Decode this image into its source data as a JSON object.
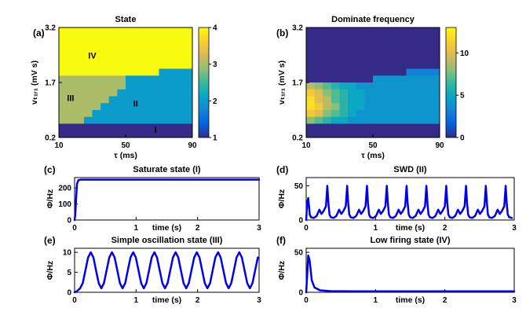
{
  "figure": {
    "background": "#ffffff"
  },
  "colors": {
    "line": "#0000ee",
    "annotation": "#ff0000",
    "axis": "#000000",
    "parula_stops": [
      "#352a87",
      "#0363e1",
      "#1485d4",
      "#06a7c6",
      "#38b99e",
      "#92bf73",
      "#d9ba56",
      "#fcce2e",
      "#f9fb0e"
    ]
  },
  "chart_data": [
    {
      "id": "a",
      "type": "heatmap",
      "letter": "(a)",
      "title": "State",
      "xlabel": "τ (ms)",
      "ylabel": "vₜ₁ᵣ₁ (mV s)",
      "x_range": [
        10,
        90
      ],
      "y_range": [
        0.2,
        3.2
      ],
      "xticks": [
        10,
        50,
        90
      ],
      "yticks": [
        0.2,
        1.7,
        3.2
      ],
      "zlim": [
        1,
        4
      ],
      "colorbar_ticks": [
        1,
        2,
        3,
        4
      ],
      "annotations": [
        {
          "text": "IV",
          "x": 30,
          "y": 2.35
        },
        {
          "text": "III",
          "x": 17,
          "y": 1.2
        },
        {
          "text": "II",
          "x": 56,
          "y": 1.05
        },
        {
          "text": "I",
          "x": 68,
          "y": 0.33
        }
      ],
      "matrix": [
        [
          4,
          4,
          4,
          4,
          4,
          4,
          4,
          4,
          4,
          4,
          4,
          4,
          4,
          4,
          4,
          4
        ],
        [
          4,
          4,
          4,
          4,
          4,
          4,
          4,
          4,
          4,
          4,
          4,
          4,
          4,
          4,
          4,
          4
        ],
        [
          4,
          4,
          4,
          4,
          4,
          4,
          4,
          4,
          4,
          4,
          4,
          4,
          4,
          4,
          4,
          4
        ],
        [
          4,
          4,
          4,
          4,
          4,
          4,
          4,
          4,
          4,
          4,
          4,
          4,
          4,
          4,
          4,
          4
        ],
        [
          4,
          4,
          4,
          4,
          4,
          4,
          4,
          4,
          4,
          4,
          4,
          4,
          4,
          4,
          4,
          4
        ],
        [
          4,
          4,
          4,
          4,
          4,
          4,
          4,
          4,
          4,
          4,
          4,
          4,
          4,
          4,
          4,
          4
        ],
        [
          4,
          4,
          4,
          4,
          4,
          4,
          4,
          4,
          4,
          4,
          4,
          4,
          2,
          2,
          2,
          2
        ],
        [
          3,
          3,
          3,
          3,
          3,
          3,
          3,
          3,
          2,
          2,
          2,
          2,
          2,
          2,
          2,
          2
        ],
        [
          3,
          3,
          3,
          3,
          3,
          3,
          3,
          3,
          2,
          2,
          2,
          2,
          2,
          2,
          2,
          2
        ],
        [
          3,
          3,
          3,
          3,
          3,
          3,
          3,
          2,
          2,
          2,
          2,
          2,
          2,
          2,
          2,
          2
        ],
        [
          3,
          3,
          3,
          3,
          3,
          3,
          2,
          2,
          2,
          2,
          2,
          2,
          2,
          2,
          2,
          2
        ],
        [
          3,
          3,
          3,
          3,
          3,
          2,
          2,
          2,
          2,
          2,
          2,
          2,
          2,
          2,
          2,
          2
        ],
        [
          3,
          3,
          3,
          3,
          2,
          2,
          2,
          2,
          2,
          2,
          2,
          2,
          2,
          2,
          2,
          2
        ],
        [
          3,
          3,
          3,
          2,
          2,
          2,
          2,
          2,
          2,
          2,
          2,
          2,
          2,
          2,
          2,
          2
        ],
        [
          1,
          1,
          1,
          1,
          1,
          1,
          1,
          1,
          1,
          1,
          1,
          1,
          1,
          1,
          1,
          1
        ],
        [
          1,
          1,
          1,
          1,
          1,
          1,
          1,
          1,
          1,
          1,
          1,
          1,
          1,
          1,
          1,
          1
        ]
      ]
    },
    {
      "id": "b",
      "type": "heatmap",
      "letter": "(b)",
      "title": "Dominate frequency",
      "xlabel": "τ (ms)",
      "ylabel": "vₜ₁ᵣ₁ (mV s)",
      "x_range": [
        10,
        90
      ],
      "y_range": [
        0.2,
        3.2
      ],
      "xticks": [
        10,
        50,
        90
      ],
      "yticks": [
        0.2,
        1.7,
        3.2
      ],
      "zlim": [
        0,
        13
      ],
      "colorbar_ticks": [
        0,
        5,
        10
      ],
      "annotations": [],
      "matrix": [
        [
          0,
          0,
          0,
          0,
          0,
          0,
          0,
          0,
          0,
          0,
          0,
          0,
          0,
          0,
          0,
          0
        ],
        [
          0,
          0,
          0,
          0,
          0,
          0,
          0,
          0,
          0,
          0,
          0,
          0,
          0,
          0,
          0,
          0
        ],
        [
          0,
          0,
          0,
          0,
          0,
          0,
          0,
          0,
          0,
          0,
          0,
          0,
          0,
          0,
          0,
          0
        ],
        [
          0,
          0,
          0,
          0,
          0,
          0,
          0,
          0,
          0,
          0,
          0,
          0,
          0,
          0,
          0,
          0
        ],
        [
          0,
          0,
          0,
          0,
          0,
          0,
          0,
          0,
          0,
          0,
          0,
          0,
          0,
          0,
          0,
          0
        ],
        [
          0,
          0,
          0,
          0,
          0,
          0,
          0,
          0,
          0,
          0,
          0,
          0,
          0,
          0,
          0,
          0
        ],
        [
          0,
          0,
          0,
          0,
          0,
          0,
          0,
          0,
          0,
          0,
          0,
          0,
          3,
          3,
          3,
          3
        ],
        [
          0,
          0,
          0,
          0,
          0,
          0,
          0,
          0,
          4,
          4,
          4,
          4,
          4,
          4,
          4,
          4
        ],
        [
          9,
          8,
          7,
          6,
          5,
          5,
          4,
          4,
          4,
          4,
          4,
          4,
          4,
          4,
          4,
          4
        ],
        [
          11,
          10,
          8,
          7,
          6,
          5,
          5,
          4,
          4,
          4,
          4,
          4,
          4,
          4,
          4,
          4
        ],
        [
          12,
          10,
          9,
          7,
          6,
          5,
          5,
          4,
          4,
          4,
          4,
          4,
          4,
          4,
          4,
          4
        ],
        [
          12,
          11,
          9,
          8,
          6,
          5,
          5,
          4,
          4,
          4,
          4,
          4,
          4,
          4,
          4,
          4
        ],
        [
          11,
          10,
          8,
          7,
          6,
          5,
          4,
          4,
          4,
          4,
          4,
          4,
          4,
          4,
          4,
          4
        ],
        [
          8,
          7,
          6,
          5,
          5,
          4,
          4,
          4,
          4,
          4,
          4,
          4,
          4,
          4,
          4,
          4
        ],
        [
          0,
          0,
          0,
          0,
          0,
          0,
          0,
          0,
          0,
          0,
          0,
          0,
          0,
          0,
          0,
          0
        ],
        [
          0,
          0,
          0,
          0,
          0,
          0,
          0,
          0,
          0,
          0,
          0,
          0,
          0,
          0,
          0,
          0
        ]
      ]
    },
    {
      "id": "c",
      "type": "line",
      "letter": "(c)",
      "title": "Saturate state (I)",
      "xlabel": "time (s)",
      "ylabel": "Φ/Hz",
      "x_range": [
        0,
        3
      ],
      "y_range": [
        0,
        265
      ],
      "xticks": [
        0,
        1,
        2,
        3
      ],
      "yticks": [
        0,
        100,
        200
      ],
      "points": [
        [
          0,
          0
        ],
        [
          0.01,
          30
        ],
        [
          0.025,
          140
        ],
        [
          0.04,
          225
        ],
        [
          0.06,
          248
        ],
        [
          0.1,
          252
        ],
        [
          0.5,
          252
        ],
        [
          1,
          252
        ],
        [
          2,
          252
        ],
        [
          3,
          252
        ]
      ]
    },
    {
      "id": "d",
      "type": "line",
      "letter": "(d)",
      "title": "SWD (II)",
      "xlabel": "time (s)",
      "ylabel": "Φ/Hz",
      "x_range": [
        0,
        3
      ],
      "y_range": [
        0,
        62
      ],
      "xticks": [
        0,
        1,
        2,
        3
      ],
      "yticks": [
        0,
        50
      ],
      "lead_in": [
        [
          0,
          0
        ],
        [
          0.015,
          25
        ],
        [
          0.03,
          32
        ],
        [
          0.05,
          10
        ]
      ],
      "periodic": {
        "t0": 0.05,
        "period": 0.2857,
        "cycles": 11,
        "template": [
          [
            0,
            8
          ],
          [
            0.02,
            4
          ],
          [
            0.06,
            3
          ],
          [
            0.1,
            6
          ],
          [
            0.14,
            15
          ],
          [
            0.17,
            9
          ],
          [
            0.2,
            13
          ],
          [
            0.235,
            20
          ],
          [
            0.255,
            50
          ],
          [
            0.27,
            25
          ],
          [
            0.2857,
            8
          ]
        ]
      }
    },
    {
      "id": "e",
      "type": "line",
      "letter": "(e)",
      "title": "Simple oscillation state (III)",
      "xlabel": "time (s)",
      "ylabel": "Φ/Hz",
      "x_range": [
        0,
        3
      ],
      "y_range": [
        0,
        11
      ],
      "xticks": [
        0,
        1,
        2,
        3
      ],
      "yticks": [
        0,
        5,
        10
      ],
      "lead_in": [
        [
          0,
          0
        ],
        [
          0.04,
          0.3
        ],
        [
          0.09,
          1
        ]
      ],
      "periodic": {
        "t0": 0.09,
        "period": 0.345,
        "cycles": 9,
        "template": [
          [
            0,
            1
          ],
          [
            0.043,
            2.3
          ],
          [
            0.086,
            5.5
          ],
          [
            0.129,
            8.7
          ],
          [
            0.173,
            10
          ],
          [
            0.216,
            8.7
          ],
          [
            0.259,
            5.5
          ],
          [
            0.302,
            2.3
          ],
          [
            0.345,
            1
          ]
        ]
      }
    },
    {
      "id": "f",
      "type": "line",
      "letter": "(f)",
      "title": "Low firing state (IV)",
      "xlabel": "time (s)",
      "ylabel": "Φ/Hz",
      "x_range": [
        0,
        3
      ],
      "y_range": [
        0,
        55
      ],
      "xticks": [
        0,
        1,
        2,
        3
      ],
      "yticks": [
        0,
        50
      ],
      "points": [
        [
          0,
          0
        ],
        [
          0.012,
          18
        ],
        [
          0.03,
          46
        ],
        [
          0.05,
          40
        ],
        [
          0.08,
          15
        ],
        [
          0.12,
          6
        ],
        [
          0.2,
          2.5
        ],
        [
          0.35,
          1.5
        ],
        [
          0.7,
          1.2
        ],
        [
          1.5,
          1.2
        ],
        [
          3,
          1.2
        ]
      ]
    }
  ]
}
